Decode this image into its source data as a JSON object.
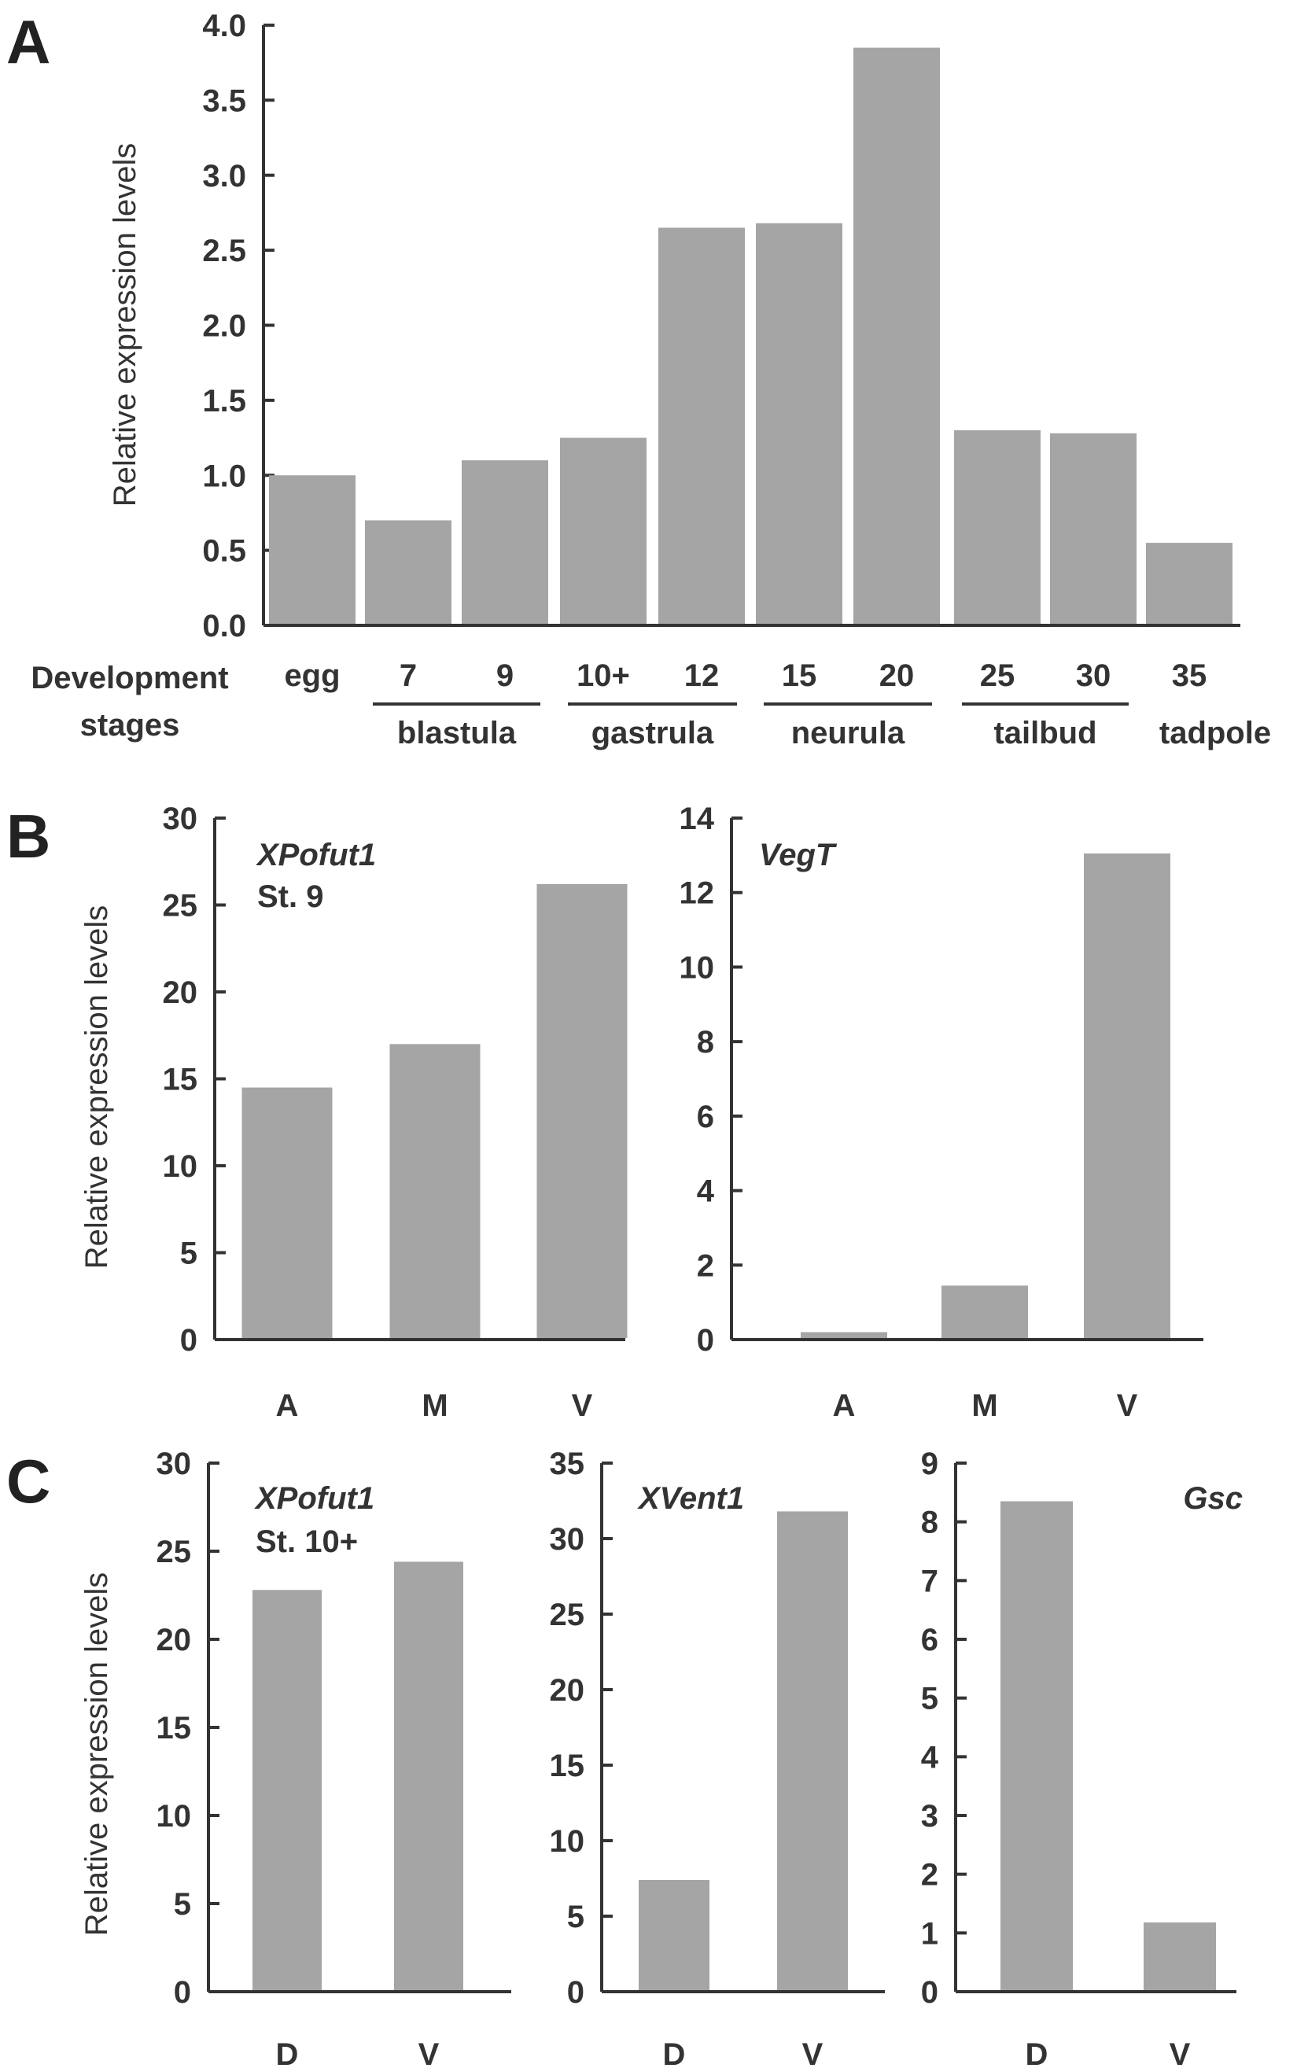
{
  "figure": {
    "panels": [
      {
        "id": "A",
        "letter": "A"
      },
      {
        "id": "B",
        "letter": "B"
      },
      {
        "id": "C",
        "letter": "C"
      }
    ],
    "ylabel": "Relative expression levels",
    "stage_axis": {
      "title_line1": "Development",
      "title_line2": "stages",
      "groups": [
        "blastula",
        "gastrula",
        "neurula",
        "tailbud",
        "tadpole"
      ]
    }
  },
  "chart_data": [
    {
      "id": "A",
      "type": "bar",
      "title": "",
      "xlabel": "Development stages",
      "ylabel": "Relative expression levels",
      "ylim": [
        0,
        4.0
      ],
      "yticks": [
        "0.0",
        "0.5",
        "1.0",
        "1.5",
        "2.0",
        "2.5",
        "3.0",
        "3.5",
        "4.0"
      ],
      "categories": [
        "egg",
        "7",
        "9",
        "10+",
        "12",
        "15",
        "20",
        "25",
        "30",
        "35"
      ],
      "values": [
        1.0,
        0.7,
        1.1,
        1.25,
        2.65,
        2.68,
        3.85,
        1.3,
        1.28,
        0.55
      ],
      "category_groups": [
        {
          "label": "blastula",
          "members": [
            "7",
            "9"
          ]
        },
        {
          "label": "gastrula",
          "members": [
            "10+",
            "12"
          ]
        },
        {
          "label": "neurula",
          "members": [
            "15",
            "20"
          ]
        },
        {
          "label": "tailbud",
          "members": [
            "25",
            "30"
          ]
        },
        {
          "label": "tadpole",
          "members": [
            "35"
          ]
        }
      ],
      "grid": false
    },
    {
      "id": "B1",
      "type": "bar",
      "annotation": [
        "XPofut1",
        "St. 9"
      ],
      "ylabel": "Relative expression levels",
      "ylim": [
        0,
        30
      ],
      "yticks": [
        "0",
        "5",
        "10",
        "15",
        "20",
        "25",
        "30"
      ],
      "categories": [
        "A",
        "M",
        "V"
      ],
      "values": [
        14.5,
        17.0,
        26.2
      ],
      "grid": false
    },
    {
      "id": "B2",
      "type": "bar",
      "annotation": [
        "VegT"
      ],
      "ylabel": "",
      "ylim": [
        0,
        14
      ],
      "yticks": [
        "0",
        "2",
        "4",
        "6",
        "8",
        "10",
        "12",
        "14"
      ],
      "categories": [
        "A",
        "M",
        "V"
      ],
      "values": [
        0.2,
        1.45,
        13.05
      ],
      "grid": false
    },
    {
      "id": "C1",
      "type": "bar",
      "annotation": [
        "XPofut1",
        "St. 10+"
      ],
      "ylabel": "Relative expression levels",
      "ylim": [
        0,
        30
      ],
      "yticks": [
        "0",
        "5",
        "10",
        "15",
        "20",
        "25",
        "30"
      ],
      "categories": [
        "D",
        "V"
      ],
      "values": [
        22.8,
        24.4
      ],
      "grid": false
    },
    {
      "id": "C2",
      "type": "bar",
      "annotation": [
        "XVent1"
      ],
      "ylabel": "",
      "ylim": [
        0,
        35
      ],
      "yticks": [
        "0",
        "5",
        "10",
        "15",
        "20",
        "25",
        "30",
        "35"
      ],
      "categories": [
        "D",
        "V"
      ],
      "values": [
        7.4,
        31.8
      ],
      "grid": false
    },
    {
      "id": "C3",
      "type": "bar",
      "annotation": [
        "Gsc"
      ],
      "ylabel": "",
      "ylim": [
        0,
        9
      ],
      "yticks": [
        "0",
        "1",
        "2",
        "3",
        "4",
        "5",
        "6",
        "7",
        "8",
        "9"
      ],
      "categories": [
        "D",
        "V"
      ],
      "values": [
        8.35,
        1.18
      ],
      "grid": false
    }
  ]
}
